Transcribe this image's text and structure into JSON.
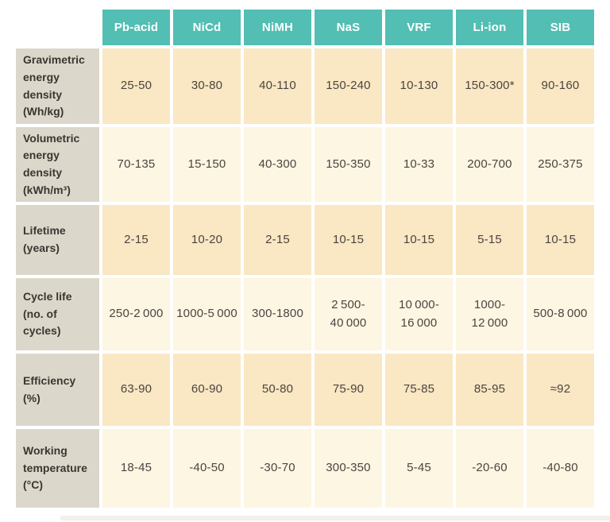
{
  "theme": {
    "header-bg": "#53beb3",
    "header-text": "#ffffff",
    "label-bg": "#dbd8cb",
    "label-text": "#3a3631",
    "row-peach": "#fae7c3",
    "row-cream": "#fdf6e3",
    "value-text": "#4a4540",
    "gap": "#ffffff"
  },
  "chart_data": {
    "type": "table",
    "columns": [
      "Pb-acid",
      "NiCd",
      "NiMH",
      "NaS",
      "VRF",
      "Li-ion",
      "SIB"
    ],
    "rows": [
      {
        "label": "Gravimetric\nenergy\ndensity\n(Wh/kg)",
        "values": [
          "25-50",
          "30-80",
          "40-110",
          "150-240",
          "10-130",
          "150-300*",
          "90-160"
        ]
      },
      {
        "label": "Volumetric\nenergy\ndensity\n(kWh/m³)",
        "values": [
          "70-135",
          "15-150",
          "40-300",
          "150-350",
          "10-33",
          "200-700",
          "250-375"
        ]
      },
      {
        "label": "Lifetime\n(years)",
        "values": [
          "2-15",
          "10-20",
          "2-15",
          "10-15",
          "10-15",
          "5-15",
          "10-15"
        ]
      },
      {
        "label": "Cycle life\n(no. of cycles)",
        "values": [
          "250-2 000",
          "1000-5 000",
          "300-1800",
          "2 500-\n40 000",
          "10 000-\n16 000",
          "1000-\n12 000",
          "500-8 000"
        ]
      },
      {
        "label": "Efficiency\n(%)",
        "values": [
          "63-90",
          "60-90",
          "50-80",
          "75-90",
          "75-85",
          "85-95",
          "≈92"
        ]
      },
      {
        "label": "Working\ntemperature\n(°C)",
        "values": [
          "18-45",
          "-40-50",
          "-30-70",
          "300-350",
          "5-45",
          "-20-60",
          "-40-80"
        ]
      }
    ]
  }
}
